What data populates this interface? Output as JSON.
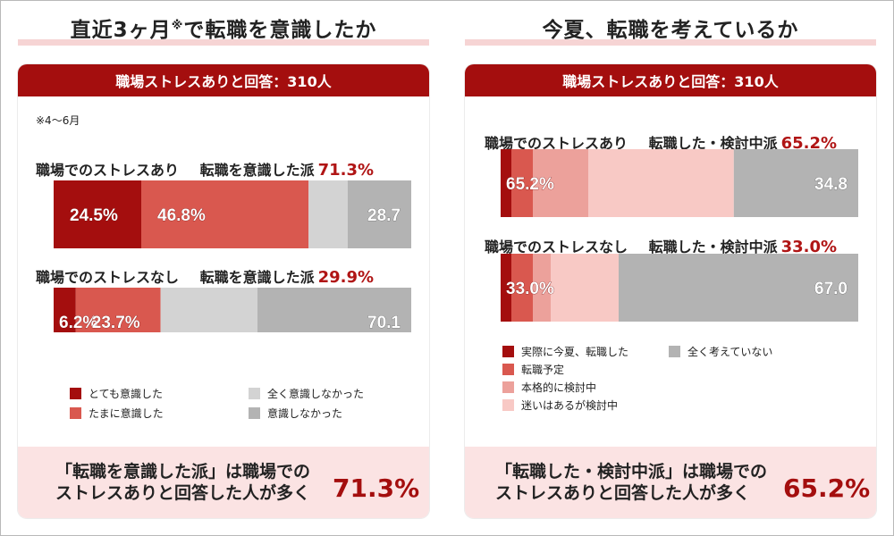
{
  "left": {
    "title": "直近3ヶ月",
    "title_mark": "※",
    "title_rest": "で転職を意識したか",
    "header": "職場ストレスありと回答：310人",
    "note": "※4～6月",
    "rows": [
      {
        "label": "職場でのストレスあり",
        "group_label": "転職を意識した派",
        "group_pct": "71.3%"
      },
      {
        "label": "職場でのストレスなし",
        "group_label": "転職を意識した派",
        "group_pct": "29.9%"
      }
    ],
    "legend": [
      {
        "label": "とても意識した",
        "color": "#a40e0e"
      },
      {
        "label": "たまに意識した",
        "color": "#d9584f"
      },
      {
        "label": "全く意識しなかった",
        "color": "#d3d3d3"
      },
      {
        "label": "意識しなかった",
        "color": "#b3b3b3"
      }
    ],
    "footer_line1": "「転職を意識した派」は職場での",
    "footer_line2": "ストレスありと回答した人が多く",
    "footer_pct": "71.3%"
  },
  "right": {
    "title": "今夏、転職を考えているか",
    "header": "職場ストレスありと回答：310人",
    "rows": [
      {
        "label": "職場でのストレスあり",
        "group_label": "転職した・検討中派",
        "group_pct": "65.2%"
      },
      {
        "label": "職場でのストレスなし",
        "group_label": "転職した・検討中派",
        "group_pct": "33.0%"
      }
    ],
    "legend": [
      {
        "label": "実際に今夏、転職した",
        "color": "#a40e0e"
      },
      {
        "label": "転職予定",
        "color": "#d9584f"
      },
      {
        "label": "本格的に検討中",
        "color": "#eca19b"
      },
      {
        "label": "迷いはあるが検討中",
        "color": "#f8c9c5"
      },
      {
        "label": "全く考えていない",
        "color": "#b3b3b3"
      }
    ],
    "footer_line1": "「転職した・検討中派」は職場での",
    "footer_line2": "ストレスありと回答した人が多く",
    "footer_pct": "65.2%"
  },
  "chart_data": [
    {
      "type": "bar",
      "stacked": true,
      "orientation": "horizontal",
      "title": "直近3ヶ月※で転職を意識したか",
      "xlim": [
        0,
        100
      ],
      "categories": [
        "職場でのストレスあり",
        "職場でのストレスなし"
      ],
      "series": [
        {
          "name": "とても意識した",
          "color": "#a40e0e",
          "values": [
            24.5,
            6.2
          ]
        },
        {
          "name": "たまに意識した",
          "color": "#d9584f",
          "values": [
            46.8,
            23.7
          ]
        },
        {
          "name": "全く意識しなかった",
          "color": "#d3d3d3",
          "values": [
            10.9,
            27.1
          ]
        },
        {
          "name": "意識しなかった",
          "color": "#b3b3b3",
          "values": [
            17.8,
            43.0
          ]
        }
      ],
      "bar_labels": [
        [
          {
            "series": 0,
            "text": "24.5%"
          },
          {
            "series": 1,
            "text": "46.8%"
          },
          {
            "series": 3,
            "text": "28.7"
          }
        ],
        [
          {
            "series": 0,
            "text": "6.2%"
          },
          {
            "series": 1,
            "text": "23.7%"
          },
          {
            "series": 3,
            "text": "70.1"
          }
        ]
      ]
    },
    {
      "type": "bar",
      "stacked": true,
      "orientation": "horizontal",
      "title": "今夏、転職を考えているか",
      "xlim": [
        0,
        100
      ],
      "categories": [
        "職場でのストレスあり",
        "職場でのストレスなし"
      ],
      "series": [
        {
          "name": "実際に今夏、転職した",
          "color": "#a40e0e",
          "values": [
            3.0,
            3.0
          ]
        },
        {
          "name": "転職予定",
          "color": "#d9584f",
          "values": [
            6.0,
            6.0
          ]
        },
        {
          "name": "本格的に検討中",
          "color": "#eca19b",
          "values": [
            15.5,
            5.0
          ]
        },
        {
          "name": "迷いはあるが検討中",
          "color": "#f8c9c5",
          "values": [
            40.7,
            19.0
          ]
        },
        {
          "name": "全く考えていない",
          "color": "#b3b3b3",
          "values": [
            34.8,
            67.0
          ]
        }
      ],
      "bar_labels": [
        [
          {
            "series": 0,
            "text": "65.2%"
          },
          {
            "series": 4,
            "text": "34.8"
          }
        ],
        [
          {
            "series": 0,
            "text": "33.0%"
          },
          {
            "series": 4,
            "text": "67.0"
          }
        ]
      ]
    }
  ]
}
